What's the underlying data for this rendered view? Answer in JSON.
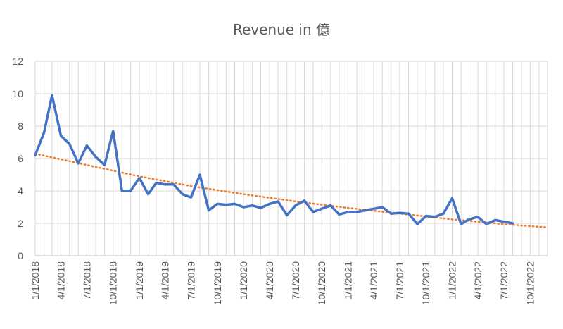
{
  "chart_data": {
    "type": "line",
    "title": "Revenue in 億",
    "xlabel": "",
    "ylabel": "",
    "ylim": [
      0,
      12
    ],
    "yticks": [
      0,
      2,
      4,
      6,
      8,
      10,
      12
    ],
    "grid": true,
    "legend": "none",
    "x_tick_labels": [
      "1/1/2018",
      "4/1/2018",
      "7/1/2018",
      "10/1/2018",
      "1/1/2019",
      "4/1/2019",
      "7/1/2019",
      "10/1/2019",
      "1/1/2020",
      "4/1/2020",
      "7/1/2020",
      "10/1/2020",
      "1/1/2021",
      "4/1/2021",
      "7/1/2021",
      "10/1/2021",
      "1/1/2022",
      "4/1/2022",
      "7/1/2022",
      "10/1/2022"
    ],
    "x_range": [
      "2018-01-01",
      "2022-12-01"
    ],
    "colors": {
      "series": "#4472C4",
      "trend": "#ED7D31",
      "grid": "#D9D9D9",
      "axis": "#BFBFBF",
      "text": "#595959"
    },
    "series": [
      {
        "x": [
          "2018-01-01",
          "2018-02-01",
          "2018-03-01",
          "2018-04-01",
          "2018-05-01",
          "2018-06-01",
          "2018-07-01",
          "2018-08-01",
          "2018-09-01",
          "2018-10-01",
          "2018-11-01",
          "2018-12-01",
          "2019-01-01",
          "2019-02-01",
          "2019-03-01",
          "2019-04-01",
          "2019-05-01",
          "2019-06-01",
          "2019-07-01",
          "2019-08-01",
          "2019-09-01",
          "2019-10-01",
          "2019-11-01",
          "2019-12-01",
          "2020-01-01",
          "2020-02-01",
          "2020-03-01",
          "2020-04-01",
          "2020-05-01",
          "2020-06-01",
          "2020-07-01",
          "2020-08-01",
          "2020-09-01",
          "2020-10-01",
          "2020-11-01",
          "2020-12-01",
          "2021-01-01",
          "2021-02-01",
          "2021-03-01",
          "2021-04-01",
          "2021-05-01",
          "2021-06-01",
          "2021-07-01",
          "2021-08-01",
          "2021-09-01",
          "2021-10-01",
          "2021-11-01",
          "2021-12-01",
          "2022-01-01",
          "2022-02-01",
          "2022-03-01",
          "2022-04-01",
          "2022-05-01",
          "2022-06-01",
          "2022-07-01",
          "2022-08-01"
        ],
        "values": [
          6.2,
          7.6,
          9.9,
          7.4,
          6.9,
          5.7,
          6.8,
          6.1,
          5.6,
          7.7,
          4.0,
          4.0,
          4.8,
          3.8,
          4.5,
          4.4,
          4.4,
          3.8,
          3.6,
          5.0,
          2.8,
          3.2,
          3.15,
          3.2,
          3.0,
          3.1,
          2.95,
          3.2,
          3.35,
          2.5,
          3.1,
          3.4,
          2.7,
          2.9,
          3.1,
          2.55,
          2.7,
          2.7,
          2.8,
          2.9,
          3.0,
          2.6,
          2.65,
          2.6,
          1.95,
          2.45,
          2.4,
          2.6,
          3.55,
          1.95,
          2.25,
          2.4,
          1.95,
          2.2,
          2.1,
          2.0
        ]
      }
    ],
    "trendline": {
      "type": "exponential",
      "x": [
        "2018-01-01",
        "2018-07-01",
        "2019-01-01",
        "2019-07-01",
        "2020-01-01",
        "2020-07-01",
        "2021-01-01",
        "2021-07-01",
        "2022-01-01",
        "2022-07-01",
        "2022-12-01"
      ],
      "values": [
        6.3,
        5.6,
        4.9,
        4.3,
        3.8,
        3.35,
        2.95,
        2.6,
        2.25,
        1.95,
        1.75
      ]
    }
  }
}
